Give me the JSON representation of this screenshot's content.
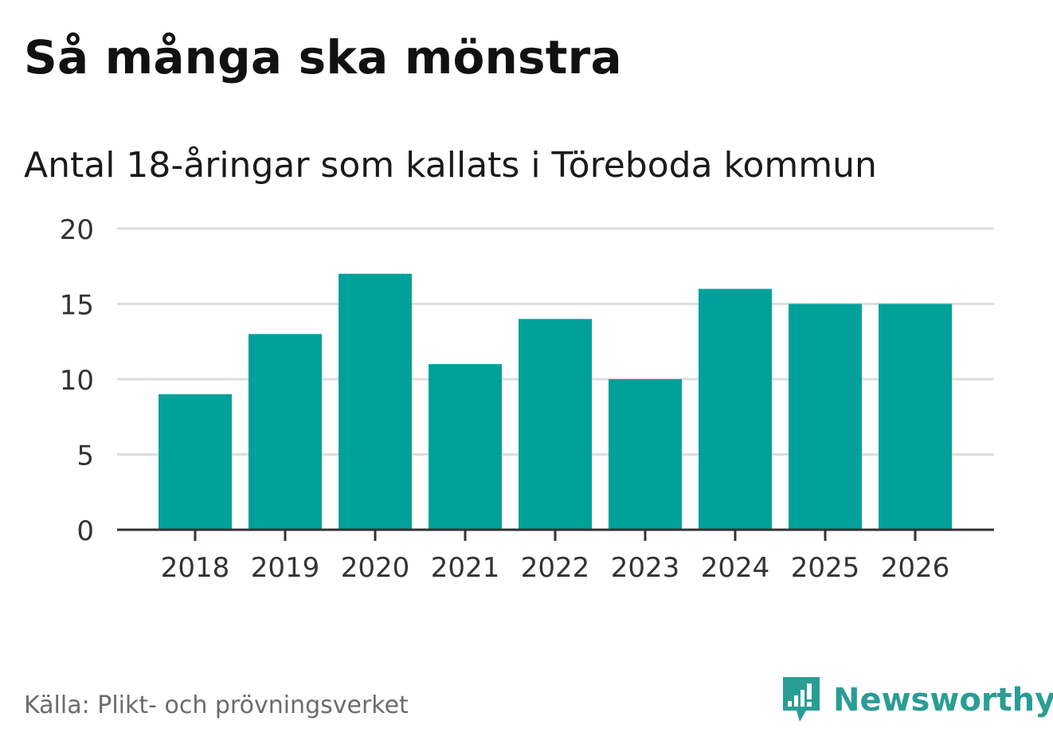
{
  "title": "Så många ska mönstra",
  "subtitle": "Antal 18-åringar som kallats i Töreboda kommun",
  "source": "Källa: Plikt- och prövningsverket",
  "brand": {
    "name": "Newsworthy",
    "icon": "newsworthy-logo-icon",
    "color": "#2a9d95"
  },
  "colors": {
    "bar": "#00a19a",
    "grid": "#dddddd",
    "axis": "#333333",
    "tick_text": "#333333"
  },
  "chart_data": {
    "type": "bar",
    "categories": [
      "2018",
      "2019",
      "2020",
      "2021",
      "2022",
      "2023",
      "2024",
      "2025",
      "2026"
    ],
    "values": [
      9,
      13,
      17,
      11,
      14,
      10,
      16,
      15,
      15
    ],
    "ylim": [
      0,
      20
    ],
    "yticks": [
      0,
      5,
      10,
      15,
      20
    ],
    "ytick_labels": [
      "0",
      "5",
      "10",
      "15",
      "20"
    ],
    "grid": true,
    "legend": false
  }
}
